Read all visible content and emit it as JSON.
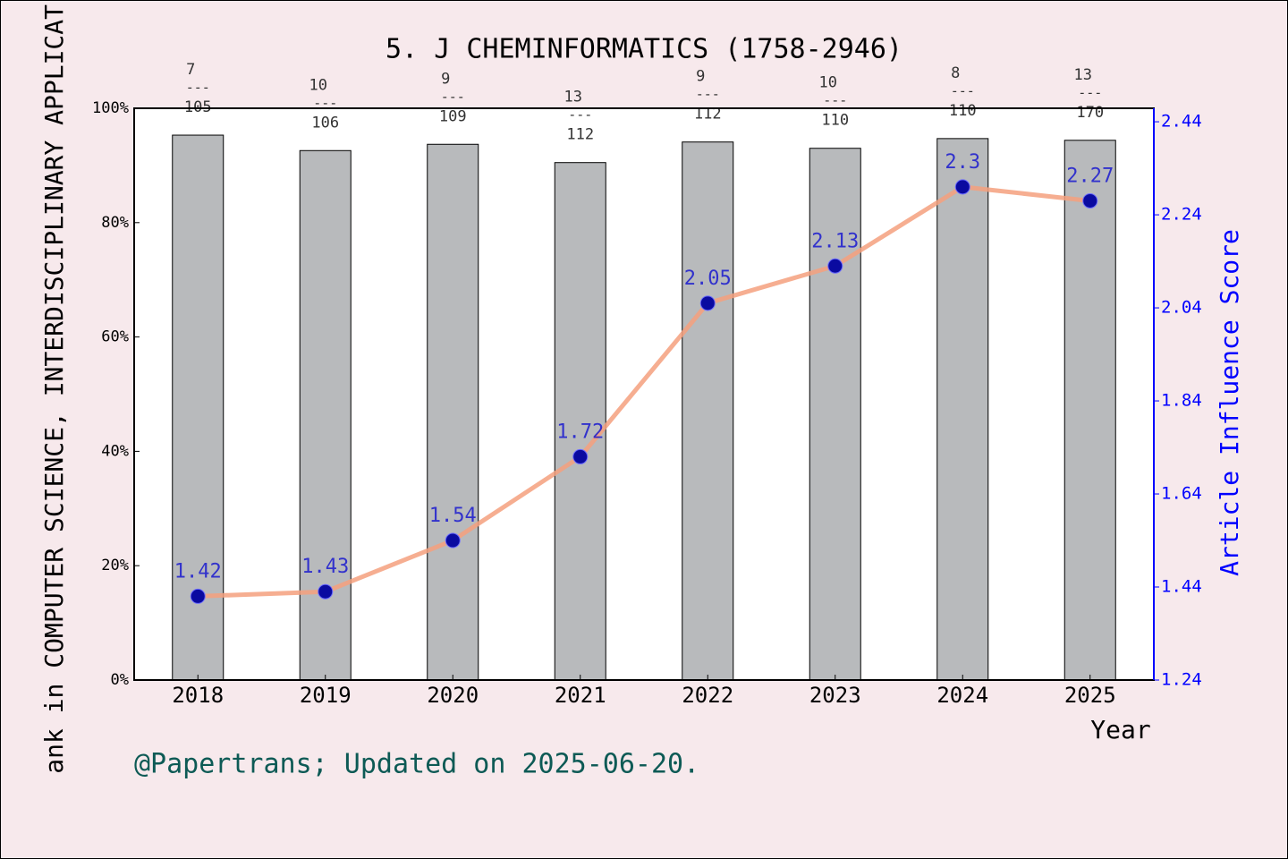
{
  "chart_data": {
    "type": "bar",
    "title": "5. J CHEMINFORMATICS (1758-2946)",
    "categories": [
      "2018",
      "2019",
      "2020",
      "2021",
      "2022",
      "2023",
      "2024",
      "2025"
    ],
    "series": [
      {
        "type": "bar",
        "color": "#b8babc",
        "values": [
          95.3,
          92.6,
          93.7,
          90.5,
          94.1,
          93.0,
          94.7,
          94.4
        ]
      },
      {
        "type": "line",
        "axis": "y2",
        "color": "#f4a07e",
        "marker_color": "#0a0aa0",
        "label_color": "#1010d0",
        "values": [
          1.42,
          1.43,
          1.54,
          1.72,
          2.05,
          2.13,
          2.3,
          2.27
        ]
      }
    ],
    "rank_labels": [
      {
        "rank": "7",
        "total": "105"
      },
      {
        "rank": "10",
        "total": "106"
      },
      {
        "rank": "9",
        "total": "109"
      },
      {
        "rank": "13",
        "total": "112"
      },
      {
        "rank": "9",
        "total": "112"
      },
      {
        "rank": "10",
        "total": "110"
      },
      {
        "rank": "8",
        "total": "110"
      },
      {
        "rank": "13",
        "total": "170"
      }
    ],
    "separator": "---",
    "ylim": [
      0,
      100
    ],
    "yticks": [
      {
        "value": 0,
        "label": "0%"
      },
      {
        "value": 20,
        "label": "20%"
      },
      {
        "value": 40,
        "label": "40%"
      },
      {
        "value": 60,
        "label": "60%"
      },
      {
        "value": 80,
        "label": "80%"
      },
      {
        "value": 100,
        "label": "100%"
      }
    ],
    "y2lim": [
      1.24,
      2.469
    ],
    "y2ticks": [
      1.24,
      1.44,
      1.64,
      1.84,
      2.04,
      2.24,
      2.44
    ],
    "ylabel": "ank in COMPUTER SCIENCE, INTERDISCIPLINARY APPLICAT",
    "y2label": "Article Influence Score",
    "xlabel": "Year",
    "footer": "@Papertrans; Updated on 2025-06-20."
  }
}
